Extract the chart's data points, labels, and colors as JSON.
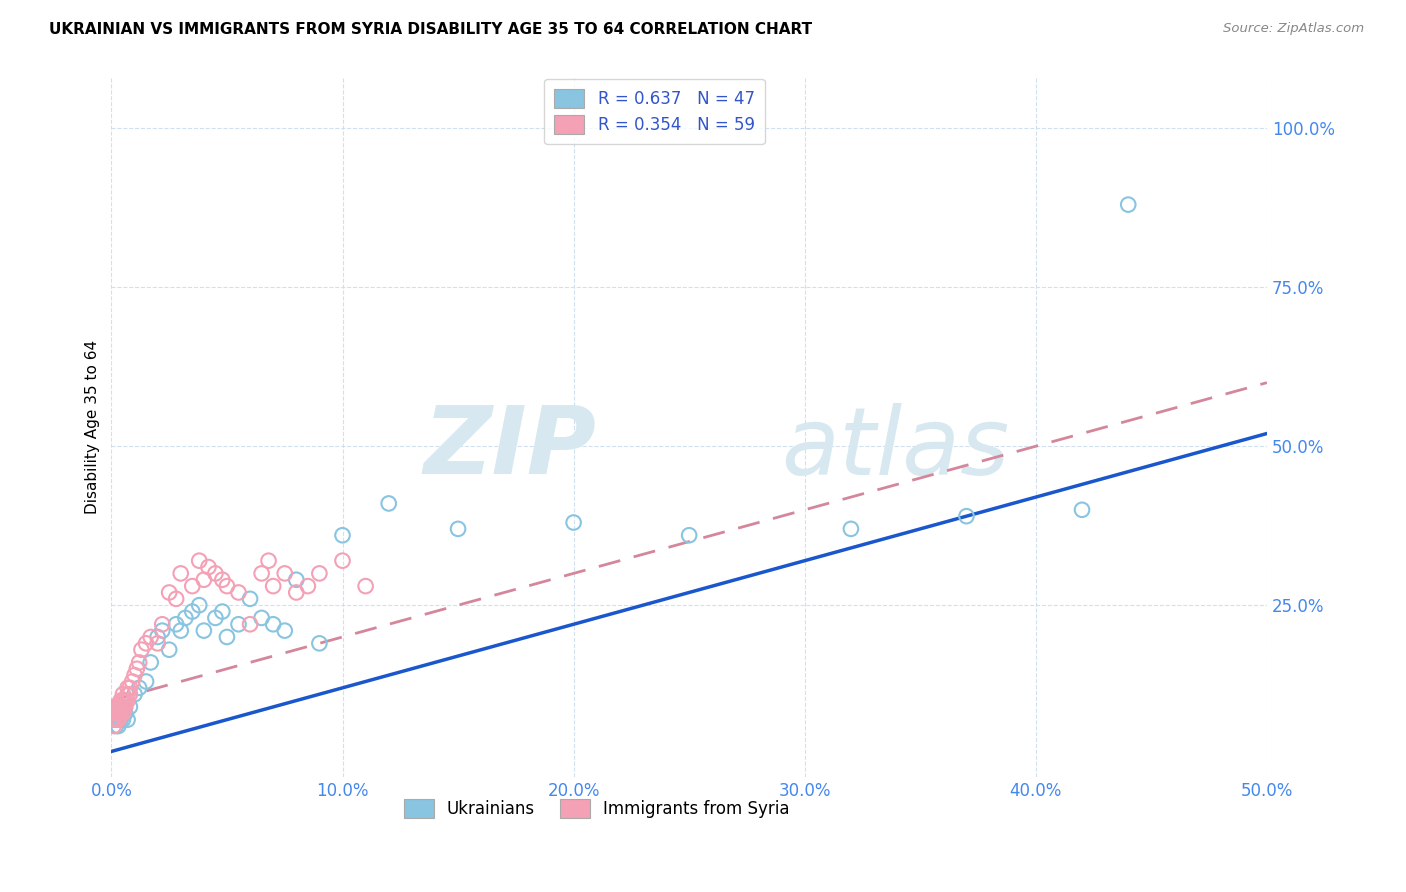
{
  "title": "UKRAINIAN VS IMMIGRANTS FROM SYRIA DISABILITY AGE 35 TO 64 CORRELATION CHART",
  "source": "Source: ZipAtlas.com",
  "ylabel": "Disability Age 35 to 64",
  "xlim": [
    0.0,
    0.5
  ],
  "ylim": [
    -0.02,
    1.08
  ],
  "xticks": [
    0.0,
    0.1,
    0.2,
    0.3,
    0.4,
    0.5
  ],
  "yticks": [
    0.25,
    0.5,
    0.75,
    1.0
  ],
  "xticklabels": [
    "0.0%",
    "10.0%",
    "20.0%",
    "30.0%",
    "40.0%",
    "50.0%"
  ],
  "yticklabels": [
    "25.0%",
    "50.0%",
    "75.0%",
    "100.0%"
  ],
  "ukrainian_color": "#89c4e1",
  "syrian_color": "#f4a0b5",
  "ukr_line_color": "#1a56cc",
  "syr_line_color": "#d4879a",
  "ukrainian_R": 0.637,
  "ukrainian_N": 47,
  "syrian_R": 0.354,
  "syrian_N": 59,
  "watermark_zip": "ZIP",
  "watermark_atlas": "atlas",
  "legend_label_1": "Ukrainians",
  "legend_label_2": "Immigrants from Syria",
  "ukr_line_x0": 0.0,
  "ukr_line_y0": 0.02,
  "ukr_line_x1": 0.5,
  "ukr_line_y1": 0.52,
  "syr_line_x0": 0.0,
  "syr_line_y0": 0.1,
  "syr_line_x1": 0.5,
  "syr_line_y1": 0.6,
  "ukrainian_x": [
    0.001,
    0.001,
    0.002,
    0.002,
    0.002,
    0.003,
    0.003,
    0.003,
    0.004,
    0.004,
    0.005,
    0.005,
    0.006,
    0.007,
    0.008,
    0.01,
    0.012,
    0.015,
    0.017,
    0.02,
    0.022,
    0.025,
    0.028,
    0.03,
    0.032,
    0.035,
    0.038,
    0.04,
    0.045,
    0.048,
    0.05,
    0.055,
    0.06,
    0.065,
    0.07,
    0.075,
    0.08,
    0.09,
    0.1,
    0.12,
    0.15,
    0.2,
    0.25,
    0.32,
    0.37,
    0.42,
    0.44
  ],
  "ukrainian_y": [
    0.07,
    0.08,
    0.06,
    0.07,
    0.09,
    0.06,
    0.07,
    0.09,
    0.07,
    0.08,
    0.07,
    0.09,
    0.08,
    0.07,
    0.09,
    0.11,
    0.12,
    0.13,
    0.16,
    0.2,
    0.21,
    0.18,
    0.22,
    0.21,
    0.23,
    0.24,
    0.25,
    0.21,
    0.23,
    0.24,
    0.2,
    0.22,
    0.26,
    0.23,
    0.22,
    0.21,
    0.29,
    0.19,
    0.36,
    0.41,
    0.37,
    0.38,
    0.36,
    0.37,
    0.39,
    0.4,
    0.88
  ],
  "syrian_x": [
    0.0,
    0.0,
    0.001,
    0.001,
    0.001,
    0.001,
    0.002,
    0.002,
    0.002,
    0.002,
    0.002,
    0.003,
    0.003,
    0.003,
    0.003,
    0.004,
    0.004,
    0.004,
    0.005,
    0.005,
    0.005,
    0.005,
    0.006,
    0.006,
    0.007,
    0.007,
    0.007,
    0.008,
    0.008,
    0.009,
    0.01,
    0.011,
    0.012,
    0.013,
    0.015,
    0.017,
    0.02,
    0.022,
    0.025,
    0.028,
    0.03,
    0.035,
    0.038,
    0.04,
    0.042,
    0.045,
    0.048,
    0.05,
    0.055,
    0.06,
    0.065,
    0.068,
    0.07,
    0.075,
    0.08,
    0.085,
    0.09,
    0.1,
    0.11
  ],
  "syrian_y": [
    0.07,
    0.08,
    0.07,
    0.08,
    0.06,
    0.09,
    0.07,
    0.08,
    0.07,
    0.09,
    0.08,
    0.07,
    0.08,
    0.09,
    0.07,
    0.08,
    0.09,
    0.1,
    0.09,
    0.08,
    0.1,
    0.11,
    0.09,
    0.1,
    0.11,
    0.1,
    0.12,
    0.11,
    0.12,
    0.13,
    0.14,
    0.15,
    0.16,
    0.18,
    0.19,
    0.2,
    0.19,
    0.22,
    0.27,
    0.26,
    0.3,
    0.28,
    0.32,
    0.29,
    0.31,
    0.3,
    0.29,
    0.28,
    0.27,
    0.22,
    0.3,
    0.32,
    0.28,
    0.3,
    0.27,
    0.28,
    0.3,
    0.32,
    0.28
  ]
}
